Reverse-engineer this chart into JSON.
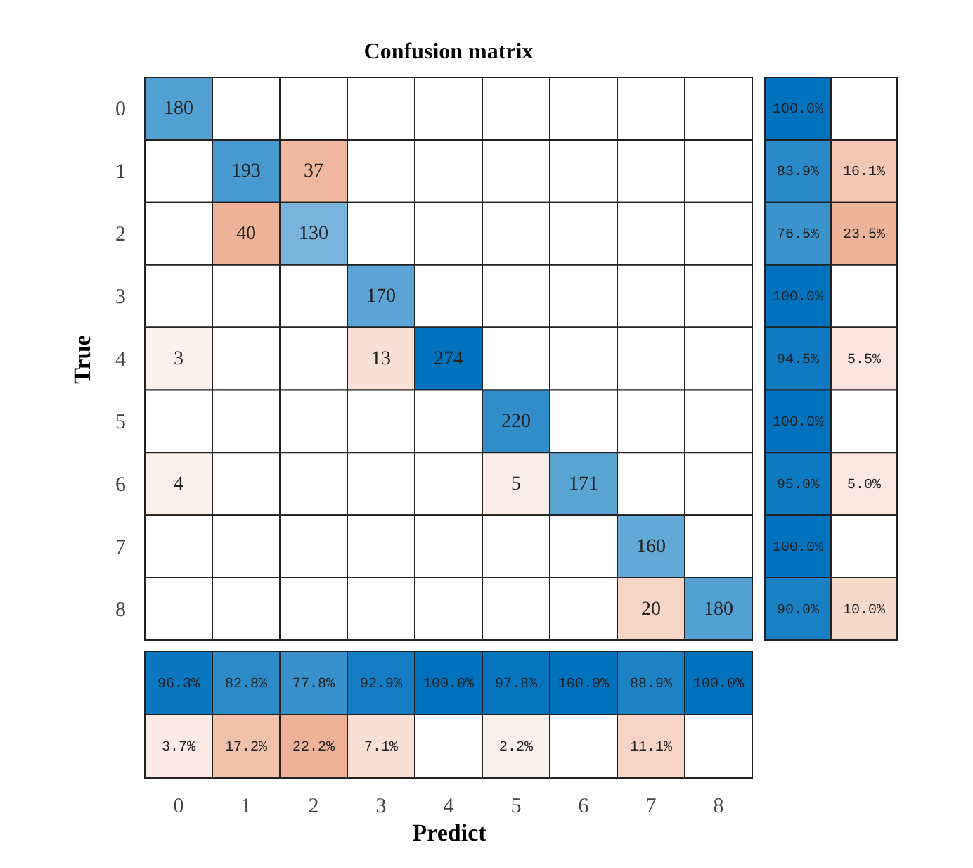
{
  "chart_data": [
    {
      "type": "heatmap",
      "title": "Confusion matrix",
      "ylabel": "True",
      "tick_labels": "y",
      "data_labels": true,
      "categories": [
        "0",
        "1",
        "2",
        "3",
        "4",
        "5",
        "6",
        "7",
        "8"
      ],
      "y_categories": [
        "0",
        "1",
        "2",
        "3",
        "4",
        "5",
        "6",
        "7",
        "8"
      ],
      "cells": [
        [
          180,
          null,
          null,
          null,
          null,
          null,
          null,
          null,
          null
        ],
        [
          null,
          193,
          37,
          null,
          null,
          null,
          null,
          null,
          null
        ],
        [
          null,
          40,
          130,
          null,
          null,
          null,
          null,
          null,
          null
        ],
        [
          null,
          null,
          null,
          170,
          null,
          null,
          null,
          null,
          null
        ],
        [
          3,
          null,
          null,
          13,
          274,
          null,
          null,
          null,
          null
        ],
        [
          null,
          null,
          null,
          null,
          null,
          220,
          null,
          null,
          null
        ],
        [
          4,
          null,
          null,
          null,
          null,
          5,
          171,
          null,
          null
        ],
        [
          null,
          null,
          null,
          null,
          null,
          null,
          null,
          160,
          null
        ],
        [
          null,
          null,
          null,
          null,
          null,
          null,
          null,
          20,
          180
        ]
      ]
    },
    {
      "type": "heatmap",
      "tick_labels": false,
      "categories": [
        null,
        null
      ],
      "y_categories": [
        null,
        null,
        null,
        null,
        null,
        null,
        null,
        null,
        null
      ],
      "cells": [
        [
          100.0,
          null
        ],
        [
          83.9,
          16.1
        ],
        [
          76.5,
          23.5
        ],
        [
          100.0,
          null
        ],
        [
          94.5,
          5.5
        ],
        [
          100.0,
          null
        ],
        [
          95.0,
          5.0
        ],
        [
          100.0,
          null
        ],
        [
          90.0,
          10.0
        ]
      ],
      "cell_labels": [
        [
          "100.0%",
          null
        ],
        [
          "83.9%",
          "16.1%"
        ],
        [
          "76.5%",
          "23.5%"
        ],
        [
          "100.0%",
          null
        ],
        [
          "94.5%",
          "5.5%"
        ],
        [
          "100.0%",
          null
        ],
        [
          "95.0%",
          "5.0%"
        ],
        [
          "100.0%",
          null
        ],
        [
          "90.0%",
          "10.0%"
        ]
      ]
    },
    {
      "type": "heatmap",
      "xlabel": "Predict",
      "tick_labels": "x",
      "categories": [
        "0",
        "1",
        "2",
        "3",
        "4",
        "5",
        "6",
        "7",
        "8"
      ],
      "y_categories": [
        null,
        null
      ],
      "cells": [
        [
          96.3,
          82.8,
          77.8,
          92.9,
          100.0,
          97.8,
          100.0,
          88.9,
          100.0
        ],
        [
          3.7,
          17.2,
          22.2,
          7.1,
          null,
          2.2,
          null,
          11.1,
          null
        ]
      ],
      "cell_labels": [
        [
          "96.3%",
          "82.8%",
          "77.8%",
          "92.9%",
          "100.0%",
          "97.8%",
          "100.0%",
          "88.9%",
          "100.0%"
        ],
        [
          "3.7%",
          "17.2%",
          "22.2%",
          "7.1%",
          null,
          "2.2%",
          null,
          "11.1%",
          null
        ]
      ]
    }
  ]
}
